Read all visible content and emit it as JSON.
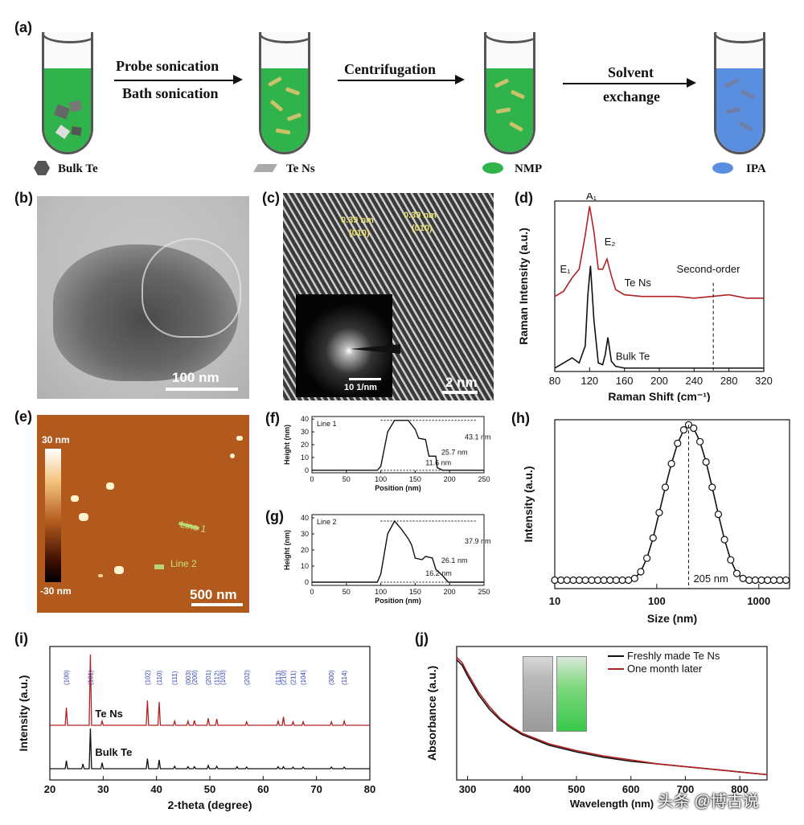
{
  "panels": {
    "a": {
      "label": "(a)",
      "steps": [
        {
          "line1": "Probe sonication",
          "line2": "Bath sonication"
        },
        {
          "line1": "Centrifugation"
        },
        {
          "line1": "Solvent",
          "line2": "exchange"
        }
      ],
      "legend": [
        "Bulk Te",
        "Te Ns",
        "NMP",
        "IPA"
      ],
      "colors": {
        "nmp": "#2fb34a",
        "ipa": "#5a8fe0",
        "bulk": "#555555",
        "flake": "#c9c26a"
      }
    },
    "b": {
      "label": "(b)",
      "scale_bar": "100 nm"
    },
    "c": {
      "label": "(c)",
      "spacing1": "0.39 nm",
      "plane1": "(010)",
      "spacing2": "0.39 nm",
      "plane2": "(010)",
      "inset_scale": "10 1/nm",
      "scale_bar": "2 nm"
    },
    "d": {
      "label": "(d)"
    },
    "e": {
      "label": "(e)",
      "color_max": "30 nm",
      "color_min": "-30 nm",
      "line1": "Line 1",
      "line2": "Line 2",
      "scale_bar": "500 nm"
    },
    "f": {
      "label": "(f)"
    },
    "g": {
      "label": "(g)"
    },
    "h": {
      "label": "(h)"
    },
    "i": {
      "label": "(i)"
    },
    "j": {
      "label": "(j)"
    }
  },
  "chart_data": [
    {
      "id": "d",
      "type": "line",
      "xlabel": "Raman Shift (cm⁻¹)",
      "ylabel": "Raman Intensity (a.u.)",
      "xlim": [
        80,
        320
      ],
      "xticks": [
        80,
        120,
        160,
        200,
        240,
        280,
        320
      ],
      "series": [
        {
          "name": "Te Ns",
          "color": "#b22222",
          "x": [
            80,
            90,
            100,
            108,
            115,
            120,
            125,
            130,
            135,
            140,
            145,
            150,
            160,
            180,
            200,
            220,
            240,
            260,
            280,
            300,
            320
          ],
          "y": [
            0.44,
            0.47,
            0.55,
            0.6,
            0.8,
            0.97,
            0.82,
            0.6,
            0.6,
            0.66,
            0.56,
            0.48,
            0.45,
            0.44,
            0.44,
            0.44,
            0.43,
            0.44,
            0.45,
            0.43,
            0.43
          ]
        },
        {
          "name": "Bulk Te",
          "color": "#111111",
          "x": [
            80,
            90,
            100,
            108,
            115,
            118,
            121,
            125,
            130,
            135,
            138,
            141,
            145,
            150,
            160,
            200,
            240,
            280,
            320
          ],
          "y": [
            0.02,
            0.05,
            0.08,
            0.05,
            0.15,
            0.45,
            0.62,
            0.3,
            0.05,
            0.04,
            0.1,
            0.2,
            0.06,
            0.03,
            0.02,
            0.02,
            0.02,
            0.02,
            0.02
          ]
        }
      ],
      "peak_labels": [
        "E₁",
        "A₁",
        "E₂"
      ],
      "annotation": "Second-order",
      "marker_x": 262
    },
    {
      "id": "f",
      "type": "line",
      "title": "Line 1",
      "xlabel": "Position (nm)",
      "ylabel": "Height (nm)",
      "xlim": [
        0,
        250
      ],
      "ylim": [
        -2,
        42
      ],
      "xticks": [
        0,
        50,
        100,
        150,
        200,
        250
      ],
      "yticks": [
        0,
        10,
        20,
        30,
        40
      ],
      "x": [
        0,
        95,
        100,
        110,
        120,
        140,
        150,
        155,
        165,
        170,
        180,
        182,
        190,
        250
      ],
      "y": [
        0,
        0,
        3,
        30,
        39,
        39,
        32,
        25,
        24,
        11,
        11,
        2,
        0,
        0
      ],
      "annotations": [
        "11.6 nm",
        "25.7 nm",
        "43.1 nm"
      ]
    },
    {
      "id": "g",
      "type": "line",
      "title": "Line 2",
      "xlabel": "Position (nm)",
      "ylabel": "Height (nm)",
      "xlim": [
        0,
        250
      ],
      "ylim": [
        -2,
        42
      ],
      "xticks": [
        0,
        50,
        100,
        150,
        200,
        250
      ],
      "yticks": [
        0,
        10,
        20,
        30,
        40
      ],
      "x": [
        0,
        95,
        100,
        110,
        120,
        130,
        140,
        145,
        150,
        160,
        165,
        175,
        180,
        190,
        198,
        205,
        250
      ],
      "y": [
        0,
        0,
        5,
        30,
        38,
        33,
        27,
        23,
        15,
        14,
        16,
        15,
        8,
        4,
        0,
        0,
        0
      ],
      "annotations": [
        "16.2 nm",
        "26.1 nm",
        "37.9 nm"
      ]
    },
    {
      "id": "h",
      "type": "scatter",
      "xlabel": "Size (nm)",
      "ylabel": "Intensity (a.u.)",
      "xscale": "log",
      "xlim": [
        10,
        2000
      ],
      "xticks": [
        10,
        100,
        1000
      ],
      "annotation": "205 nm",
      "peak_x": 205,
      "x": [
        10,
        11.5,
        13.2,
        15.2,
        17.4,
        20,
        23,
        26.4,
        30.3,
        34.8,
        40,
        46,
        52.8,
        60.6,
        69.6,
        80,
        92,
        105.6,
        121.2,
        139.2,
        160,
        183.8,
        205,
        230,
        265,
        304,
        349,
        401,
        461,
        530,
        609,
        700,
        804,
        924,
        1061,
        1219,
        1400,
        1609,
        1848
      ],
      "y": [
        0.05,
        0.05,
        0.05,
        0.05,
        0.05,
        0.05,
        0.05,
        0.05,
        0.05,
        0.05,
        0.05,
        0.05,
        0.05,
        0.06,
        0.1,
        0.18,
        0.3,
        0.45,
        0.6,
        0.74,
        0.86,
        0.94,
        0.97,
        0.95,
        0.87,
        0.75,
        0.6,
        0.44,
        0.29,
        0.17,
        0.09,
        0.06,
        0.05,
        0.05,
        0.05,
        0.05,
        0.05,
        0.05,
        0.05
      ]
    },
    {
      "id": "i",
      "type": "line",
      "xlabel": "2-theta (degree)",
      "ylabel": "Intensity (a.u.)",
      "xlim": [
        20,
        80
      ],
      "xticks": [
        20,
        30,
        40,
        50,
        60,
        70,
        80
      ],
      "series": [
        {
          "name": "Te Ns",
          "color": "#b22222",
          "peaks": [
            [
              23.1,
              0.25
            ],
            [
              27.6,
              1.0
            ],
            [
              29.8,
              0.06
            ],
            [
              38.3,
              0.35
            ],
            [
              40.5,
              0.33
            ],
            [
              43.4,
              0.06
            ],
            [
              45.9,
              0.06
            ],
            [
              47.1,
              0.07
            ],
            [
              49.7,
              0.1
            ],
            [
              51.3,
              0.09
            ],
            [
              56.9,
              0.05
            ],
            [
              62.8,
              0.06
            ],
            [
              63.8,
              0.12
            ],
            [
              65.6,
              0.05
            ],
            [
              67.5,
              0.05
            ],
            [
              72.8,
              0.05
            ],
            [
              75.2,
              0.06
            ]
          ]
        },
        {
          "name": "Bulk Te",
          "color": "#111111",
          "peaks": [
            [
              23.1,
              0.2
            ],
            [
              26.2,
              0.12
            ],
            [
              27.6,
              1.0
            ],
            [
              29.8,
              0.15
            ],
            [
              38.3,
              0.25
            ],
            [
              40.5,
              0.22
            ],
            [
              43.4,
              0.06
            ],
            [
              45.9,
              0.05
            ],
            [
              47.1,
              0.05
            ],
            [
              49.7,
              0.08
            ],
            [
              51.3,
              0.06
            ],
            [
              55.1,
              0.05
            ],
            [
              56.9,
              0.04
            ],
            [
              62.8,
              0.05
            ],
            [
              63.8,
              0.05
            ],
            [
              65.6,
              0.04
            ],
            [
              67.5,
              0.04
            ],
            [
              72.8,
              0.04
            ],
            [
              75.2,
              0.04
            ]
          ]
        }
      ],
      "indices": [
        {
          "label": "(100)",
          "x": 23.1
        },
        {
          "label": "(101)",
          "x": 27.6
        },
        {
          "label": "(102)",
          "x": 38.3
        },
        {
          "label": "(110)",
          "x": 40.5
        },
        {
          "label": "(111)",
          "x": 43.4
        },
        {
          "label": "(003)",
          "x": 45.9
        },
        {
          "label": "(200)",
          "x": 47.1
        },
        {
          "label": "(201)",
          "x": 49.7
        },
        {
          "label": "(112)",
          "x": 51.3
        },
        {
          "label": "(103)",
          "x": 52.4
        },
        {
          "label": "(202)",
          "x": 56.9
        },
        {
          "label": "(113)",
          "x": 62.8
        },
        {
          "label": "(210)",
          "x": 63.8
        },
        {
          "label": "(211)",
          "x": 65.6
        },
        {
          "label": "(104)",
          "x": 67.5
        },
        {
          "label": "(300)",
          "x": 72.8
        },
        {
          "label": "(114)",
          "x": 75.2
        }
      ]
    },
    {
      "id": "j",
      "type": "line",
      "xlabel": "Wavelength (nm)",
      "ylabel": "Absorbance (a.u.)",
      "xlim": [
        280,
        850
      ],
      "xticks": [
        300,
        400,
        500,
        600,
        700,
        800
      ],
      "series": [
        {
          "name": "Freshly made Te Ns",
          "color": "#111111",
          "x": [
            280,
            290,
            300,
            320,
            340,
            360,
            380,
            400,
            450,
            500,
            550,
            600,
            650,
            700,
            750,
            800,
            850
          ],
          "y": [
            0.9,
            0.86,
            0.78,
            0.64,
            0.53,
            0.45,
            0.39,
            0.34,
            0.26,
            0.21,
            0.17,
            0.14,
            0.12,
            0.1,
            0.08,
            0.06,
            0.04
          ]
        },
        {
          "name": "One month later",
          "color": "#b22222",
          "x": [
            280,
            290,
            300,
            320,
            340,
            360,
            380,
            400,
            450,
            500,
            550,
            600,
            650,
            700,
            750,
            800,
            850
          ],
          "y": [
            0.92,
            0.88,
            0.8,
            0.66,
            0.55,
            0.46,
            0.4,
            0.35,
            0.27,
            0.22,
            0.18,
            0.15,
            0.12,
            0.1,
            0.08,
            0.06,
            0.04
          ]
        }
      ]
    }
  ],
  "watermark": "头条 @博古说"
}
